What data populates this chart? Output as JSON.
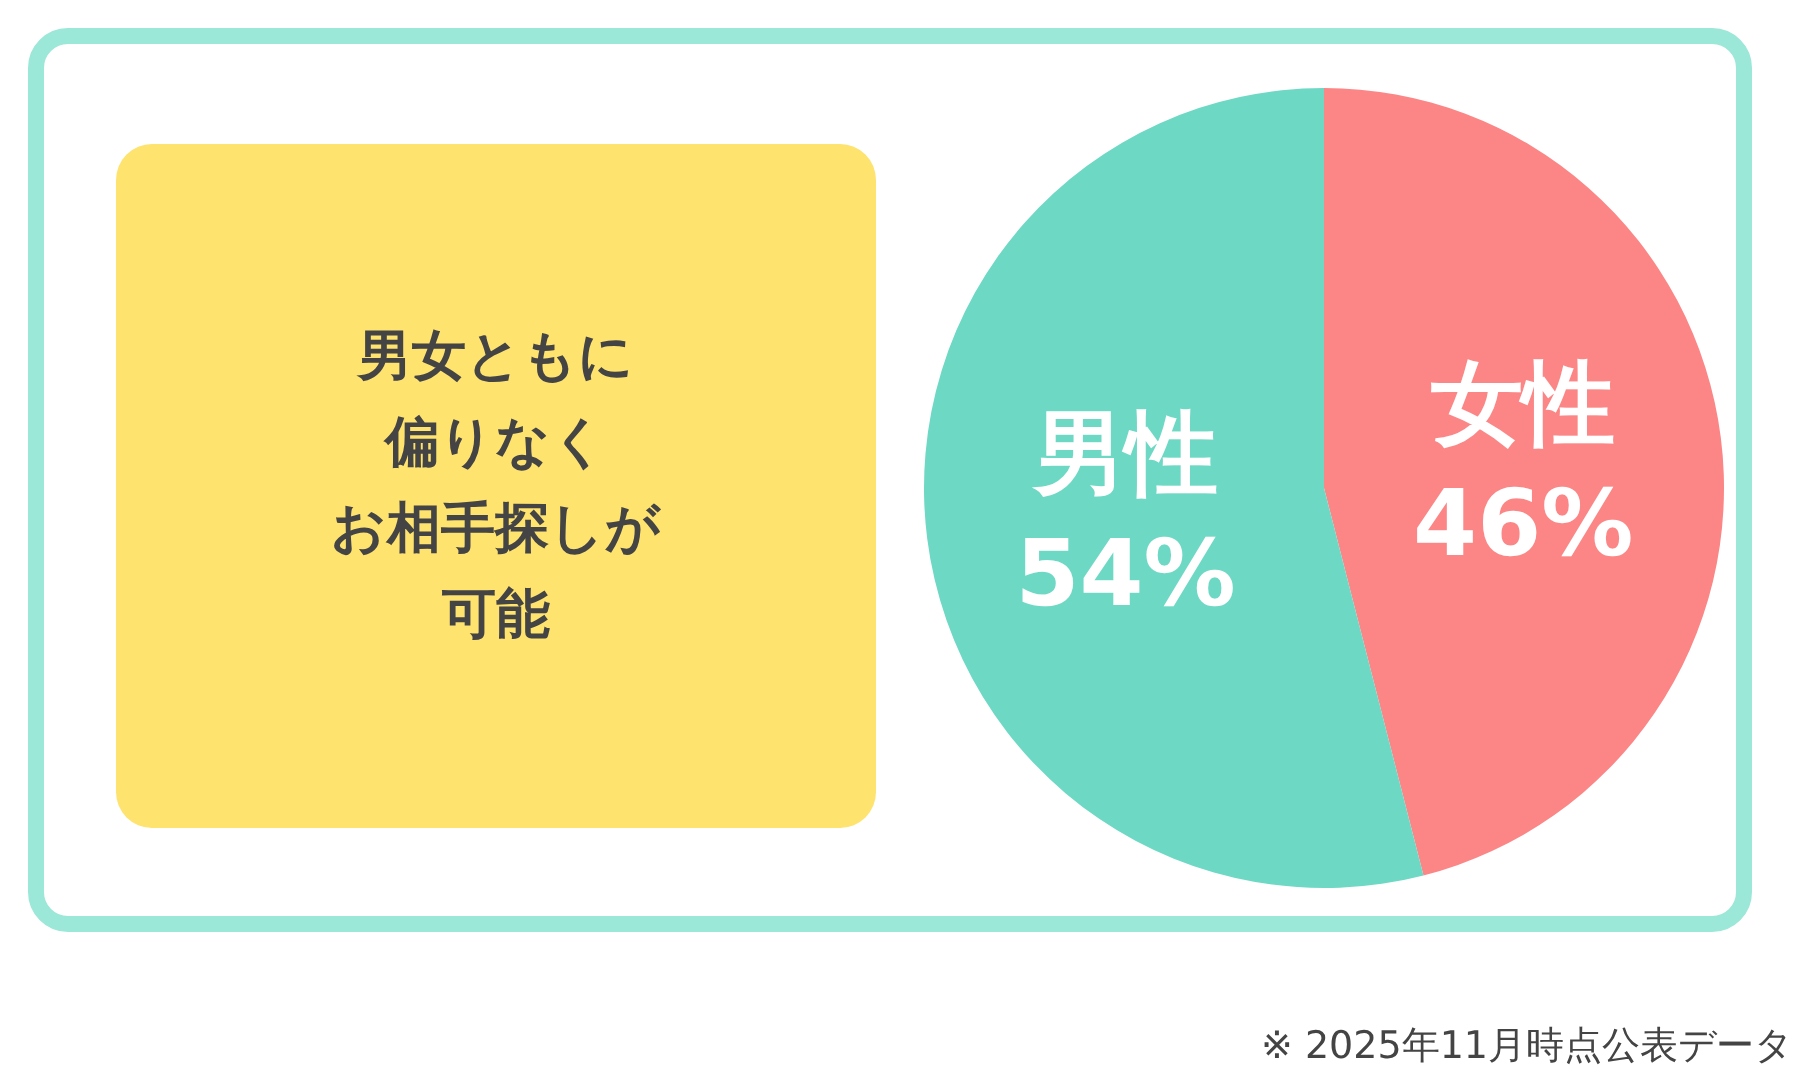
{
  "chart_data": {
    "type": "pie",
    "categories": [
      "女性",
      "男性"
    ],
    "values": [
      46,
      54
    ],
    "value_labels": [
      "46%",
      "54%"
    ],
    "colors": [
      "#fc8686",
      "#6dd8c4"
    ],
    "annotations": [
      "男女ともに",
      "偏りなく",
      "お相手探しが",
      "可能",
      "※ 2025年11月時点公表データ"
    ]
  }
}
